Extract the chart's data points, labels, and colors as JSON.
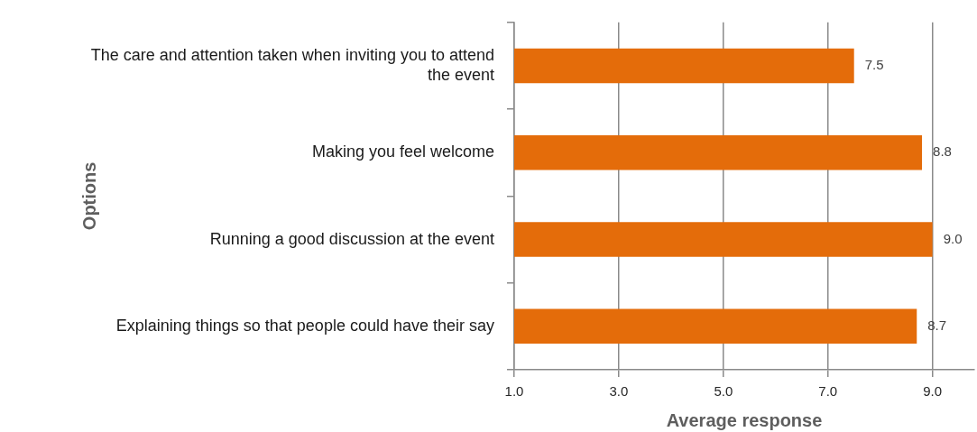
{
  "chart_data": {
    "type": "bar",
    "orientation": "horizontal",
    "categories": [
      "The care and attention taken when inviting you to attend the event",
      "Making you feel welcome",
      "Running a good discussion at the event",
      "Explaining things so that people could have their say"
    ],
    "values": [
      7.5,
      8.8,
      9.0,
      8.7
    ],
    "value_labels": [
      "7.5",
      "8.8",
      "9.0",
      "8.7"
    ],
    "color": "#e46c0a",
    "xlabel": "Average response",
    "ylabel": "Options",
    "xlim": [
      1.0,
      9.8
    ],
    "xticks": [
      {
        "value": 1,
        "label": "1.0"
      },
      {
        "value": 3,
        "label": "3.0"
      },
      {
        "value": 5,
        "label": "5.0"
      },
      {
        "value": 7,
        "label": "7.0"
      },
      {
        "value": 9,
        "label": "9.0"
      }
    ],
    "grid": "x"
  }
}
